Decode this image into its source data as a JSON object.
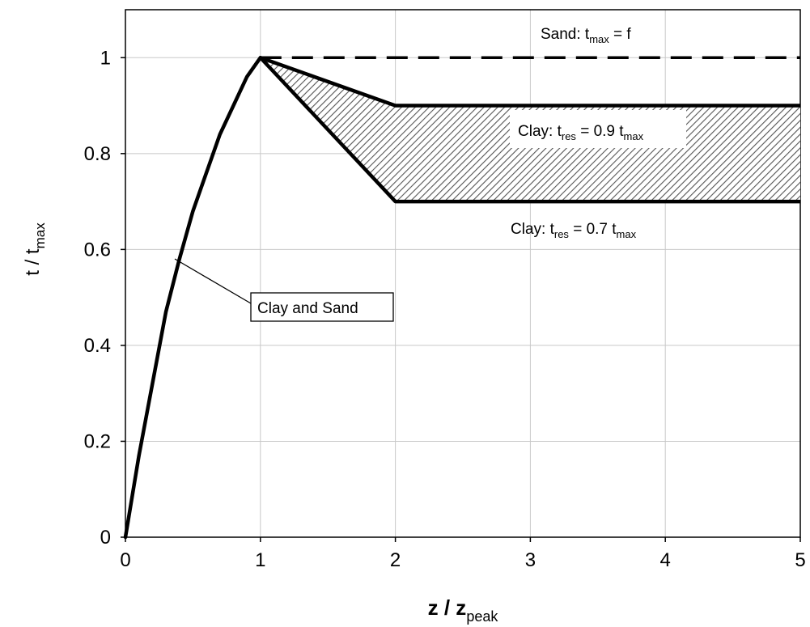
{
  "chart_data": {
    "type": "line",
    "xlabel": {
      "base": "z / z",
      "sub": "peak"
    },
    "ylabel": {
      "base": "t / t",
      "sub": "max"
    },
    "xlim": [
      0,
      5
    ],
    "ylim": [
      0,
      1.1
    ],
    "xticks": [
      "0",
      "1",
      "2",
      "3",
      "4",
      "5"
    ],
    "yticks": [
      "0",
      "0.2",
      "0.4",
      "0.6",
      "0.8",
      "1"
    ],
    "grid": true,
    "series": [
      {
        "name": "Clay and Sand",
        "x": [
          0,
          0.1,
          0.2,
          0.3,
          0.4,
          0.5,
          0.6,
          0.7,
          0.8,
          0.9,
          1.0
        ],
        "y": [
          0,
          0.17,
          0.32,
          0.47,
          0.58,
          0.68,
          0.76,
          0.84,
          0.9,
          0.96,
          1.0
        ],
        "style": "solid"
      },
      {
        "name": "Sand",
        "x": [
          1,
          5
        ],
        "y": [
          1,
          1
        ],
        "style": "dashed"
      },
      {
        "name": "Clay 0.9",
        "x": [
          1,
          2,
          5
        ],
        "y": [
          1,
          0.9,
          0.9
        ],
        "style": "solid"
      },
      {
        "name": "Clay 0.7",
        "x": [
          1,
          2,
          5
        ],
        "y": [
          1,
          0.7,
          0.7
        ],
        "style": "solid"
      }
    ],
    "shaded_region": {
      "between": [
        "Clay 0.9",
        "Clay 0.7"
      ],
      "pattern": "diagonal-hatch"
    },
    "annotations": {
      "sand": {
        "base": "Sand: t",
        "sub": "max",
        "rest": " = f"
      },
      "clay09": {
        "base": "Clay: t",
        "sub": "res",
        "rest": " = 0.9 t",
        "sub2": "max"
      },
      "clay07": {
        "base": "Clay: t",
        "sub": "res",
        "rest": " = 0.7 t",
        "sub2": "max"
      },
      "clay_and_sand": {
        "text": "Clay and Sand"
      }
    }
  }
}
